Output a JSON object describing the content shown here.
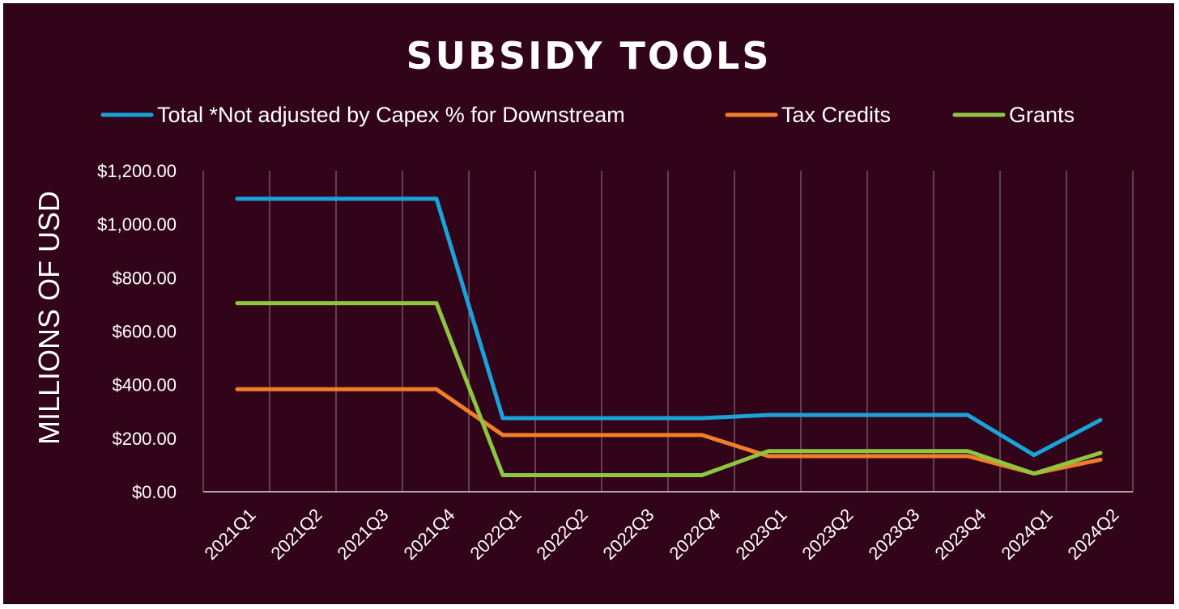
{
  "chart_data": {
    "type": "line",
    "title": "SUBSIDY TOOLS",
    "xlabel": "",
    "ylabel": "MILLIONS OF USD",
    "ylim": [
      0,
      1200
    ],
    "yticks": [
      "$0.00",
      "$200.00",
      "$400.00",
      "$600.00",
      "$800.00",
      "$1,000.00",
      "$1,200.00"
    ],
    "categories": [
      "2021Q1",
      "2021Q2",
      "2021Q3",
      "2021Q4",
      "2022Q1",
      "2022Q2",
      "2022Q3",
      "2022Q4",
      "2023Q1",
      "2023Q2",
      "2023Q3",
      "2023Q4",
      "2024Q1",
      "2024Q2"
    ],
    "grid": "vertical",
    "legend": "top",
    "series": [
      {
        "name": "Total *Not adjusted by Capex % for Downstream",
        "color": "#19a3d9",
        "values": [
          1095,
          1095,
          1095,
          1095,
          275,
          275,
          275,
          275,
          287,
          287,
          287,
          287,
          137,
          268
        ]
      },
      {
        "name": "Tax Credits",
        "color": "#f07e2a",
        "values": [
          383,
          383,
          383,
          383,
          212,
          212,
          212,
          212,
          133,
          133,
          133,
          133,
          68,
          120
        ]
      },
      {
        "name": "Grants",
        "color": "#8dc63f",
        "values": [
          705,
          705,
          705,
          705,
          62,
          62,
          62,
          62,
          152,
          152,
          152,
          152,
          68,
          145
        ]
      }
    ]
  }
}
